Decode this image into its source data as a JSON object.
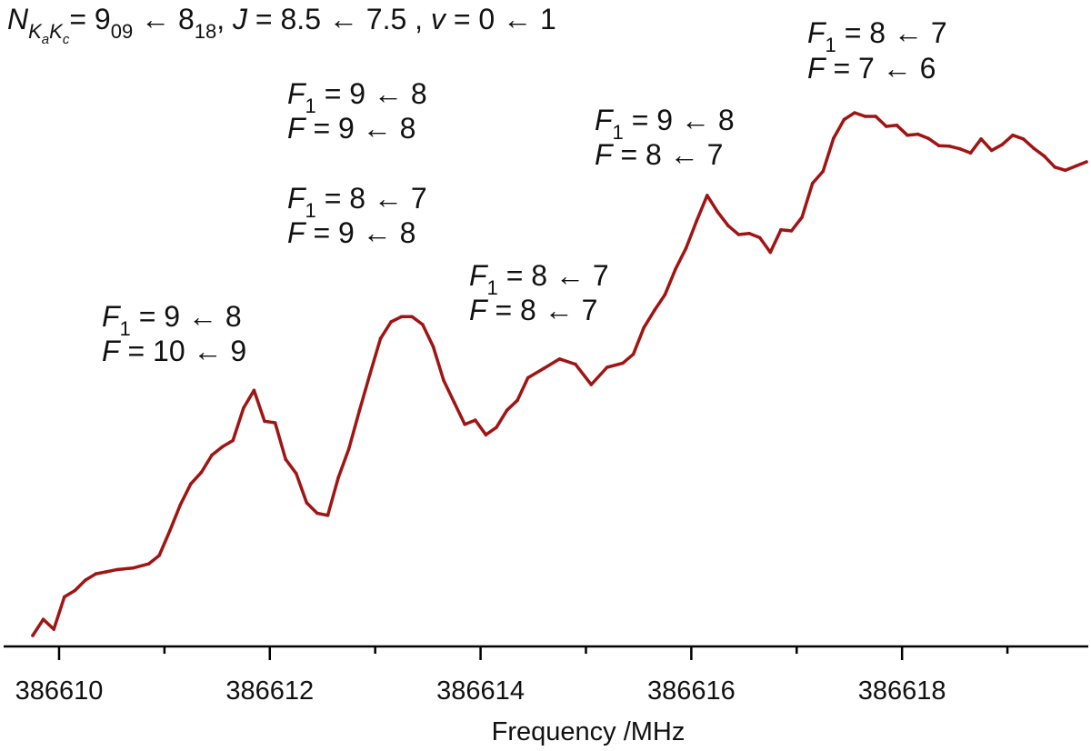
{
  "chart_data": {
    "type": "line",
    "title": "",
    "xlabel": "Frequency /MHz",
    "ylabel": "",
    "xlim": [
      386609.75,
      386619.75
    ],
    "ylim": [
      0,
      1
    ],
    "grid": false,
    "x_ticks_major": [
      386610,
      386612,
      386614,
      386616,
      386618
    ],
    "tick_labels": [
      "386610",
      "386612",
      "386614",
      "386616",
      "386618"
    ],
    "x_ticks_minor": [
      386611,
      386613,
      386615,
      386617,
      386619
    ],
    "colors": {
      "line": "#a01414",
      "axis": "#000000",
      "text": "#111111"
    },
    "header": {
      "N": "N",
      "sub_Ka": "K",
      "sub_a": "a",
      "sub_Kc": "K",
      "sub_c": "c",
      "eq1": "= 9",
      "n_up_sub": "09",
      "arrow1": " ← 8",
      "n_lo_sub": "18",
      "sep1": ",  ",
      "J": "J",
      "j_val": " = 8.5 ← 7.5 ,  ",
      "v": "v",
      "v_val": " = 0 ← 1"
    },
    "annotations": [
      {
        "l1": "F",
        "l1_sub": "1",
        "l1_val": " =   9 ← 8",
        "l2": "F",
        "l2_val": "  = 10 ← 9"
      },
      {
        "l1": "F",
        "l1_sub": "1",
        "l1_val": " = 9 ← 8",
        "l2": "F",
        "l2_val": "  = 9 ← 8"
      },
      {
        "l1": "F",
        "l1_sub": "1",
        "l1_val": " = 8 ← 7",
        "l2": "F",
        "l2_val": "  = 9 ← 8"
      },
      {
        "l1": "F",
        "l1_sub": "1",
        "l1_val": " = 8 ← 7",
        "l2": "F",
        "l2_val": "  = 8 ← 7"
      },
      {
        "l1": "F",
        "l1_sub": "1",
        "l1_val": " = 9 ← 8",
        "l2": "F",
        "l2_val": "  = 8 ← 7"
      },
      {
        "l1": "F",
        "l1_sub": "1",
        "l1_val": " = 8 ← 7",
        "l2": "F",
        "l2_val": "  = 7 ← 6"
      }
    ],
    "series": [
      {
        "x": [
          386609.75,
          386609.85,
          386609.95,
          386610.05,
          386610.15,
          386610.25,
          386610.35,
          386610.45,
          386610.55,
          386610.7,
          386610.85,
          386610.95,
          386611.05,
          386611.15,
          386611.25,
          386611.35,
          386611.45,
          386611.55,
          386611.65,
          386611.75,
          386611.85,
          386611.95,
          386612.05,
          386612.15,
          386612.25,
          386612.35,
          386612.45,
          386612.55,
          386612.65,
          386612.75,
          386612.85,
          386612.95,
          386613.05,
          386613.15,
          386613.25,
          386613.35,
          386613.45,
          386613.55,
          386613.65,
          386613.75,
          386613.85,
          386613.95,
          386614.05,
          386614.15,
          386614.25,
          386614.35,
          386614.45,
          386614.6,
          386614.75,
          386614.9,
          386615.05,
          386615.2,
          386615.35,
          386615.45,
          386615.55,
          386615.65,
          386615.75,
          386615.85,
          386615.95,
          386616.05,
          386616.15,
          386616.25,
          386616.35,
          386616.45,
          386616.55,
          386616.65,
          386616.75,
          386616.85,
          386616.95,
          386617.05,
          386617.15,
          386617.25,
          386617.35,
          386617.45,
          386617.55,
          386617.65,
          386617.75,
          386617.85,
          386617.95,
          386618.05,
          386618.15,
          386618.25,
          386618.35,
          386618.45,
          386618.55,
          386618.65,
          386618.75,
          386618.85,
          386618.95,
          386619.05,
          386619.15,
          386619.25,
          386619.35,
          386619.45,
          386619.55,
          386619.65,
          386619.75
        ],
        "y": [
          0.0,
          0.031,
          0.012,
          0.074,
          0.086,
          0.106,
          0.118,
          0.122,
          0.126,
          0.129,
          0.137,
          0.153,
          0.2,
          0.25,
          0.29,
          0.312,
          0.345,
          0.361,
          0.373,
          0.435,
          0.469,
          0.41,
          0.407,
          0.337,
          0.31,
          0.254,
          0.234,
          0.23,
          0.302,
          0.357,
          0.43,
          0.5,
          0.568,
          0.6,
          0.61,
          0.61,
          0.595,
          0.553,
          0.488,
          0.446,
          0.404,
          0.412,
          0.384,
          0.398,
          0.431,
          0.45,
          0.493,
          0.511,
          0.529,
          0.519,
          0.48,
          0.513,
          0.521,
          0.538,
          0.589,
          0.622,
          0.652,
          0.701,
          0.741,
          0.793,
          0.842,
          0.81,
          0.784,
          0.767,
          0.769,
          0.761,
          0.733,
          0.776,
          0.774,
          0.8,
          0.865,
          0.888,
          0.951,
          0.987,
          1.0,
          0.993,
          0.993,
          0.974,
          0.976,
          0.957,
          0.959,
          0.951,
          0.937,
          0.936,
          0.931,
          0.923,
          0.95,
          0.928,
          0.939,
          0.957,
          0.95,
          0.932,
          0.917,
          0.896,
          0.89,
          0.898,
          0.906
        ]
      }
    ]
  }
}
